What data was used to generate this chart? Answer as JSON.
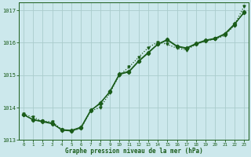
{
  "xlabel": "Graphe pression niveau de la mer (hPa)",
  "background_color": "#cce8ec",
  "grid_color": "#aacccc",
  "line_color": "#1a5c1a",
  "x_values": [
    0,
    1,
    2,
    3,
    4,
    5,
    6,
    7,
    8,
    9,
    10,
    11,
    12,
    13,
    14,
    15,
    16,
    17,
    18,
    19,
    20,
    21,
    22,
    23
  ],
  "series_dotted": [
    1013.8,
    1013.7,
    1013.58,
    1013.56,
    1013.32,
    1013.28,
    1013.36,
    1013.9,
    1014.0,
    1014.45,
    1015.0,
    1015.25,
    1015.55,
    1015.85,
    1016.02,
    1015.95,
    1015.83,
    1015.78,
    1015.95,
    1016.05,
    1016.12,
    1016.22,
    1016.55,
    1017.12
  ],
  "series_solid1": [
    1013.78,
    1013.63,
    1013.58,
    1013.52,
    1013.3,
    1013.28,
    1013.38,
    1013.9,
    1014.15,
    1014.48,
    1015.02,
    1015.1,
    1015.42,
    1015.68,
    1015.95,
    1016.08,
    1015.88,
    1015.82,
    1015.96,
    1016.06,
    1016.12,
    1016.26,
    1016.55,
    1016.95
  ],
  "series_solid2": [
    1013.78,
    1013.62,
    1013.56,
    1013.5,
    1013.32,
    1013.3,
    1013.4,
    1013.92,
    1014.12,
    1014.5,
    1015.04,
    1015.12,
    1015.44,
    1015.7,
    1015.96,
    1016.1,
    1015.9,
    1015.84,
    1015.98,
    1016.08,
    1016.14,
    1016.28,
    1016.58,
    1016.92
  ],
  "ylim": [
    1013.0,
    1017.25
  ],
  "yticks": [
    1013,
    1014,
    1015,
    1016,
    1017
  ],
  "xlim": [
    -0.5,
    23.5
  ],
  "xticks": [
    0,
    1,
    2,
    3,
    4,
    5,
    6,
    7,
    8,
    9,
    10,
    11,
    12,
    13,
    14,
    15,
    16,
    17,
    18,
    19,
    20,
    21,
    22,
    23
  ]
}
